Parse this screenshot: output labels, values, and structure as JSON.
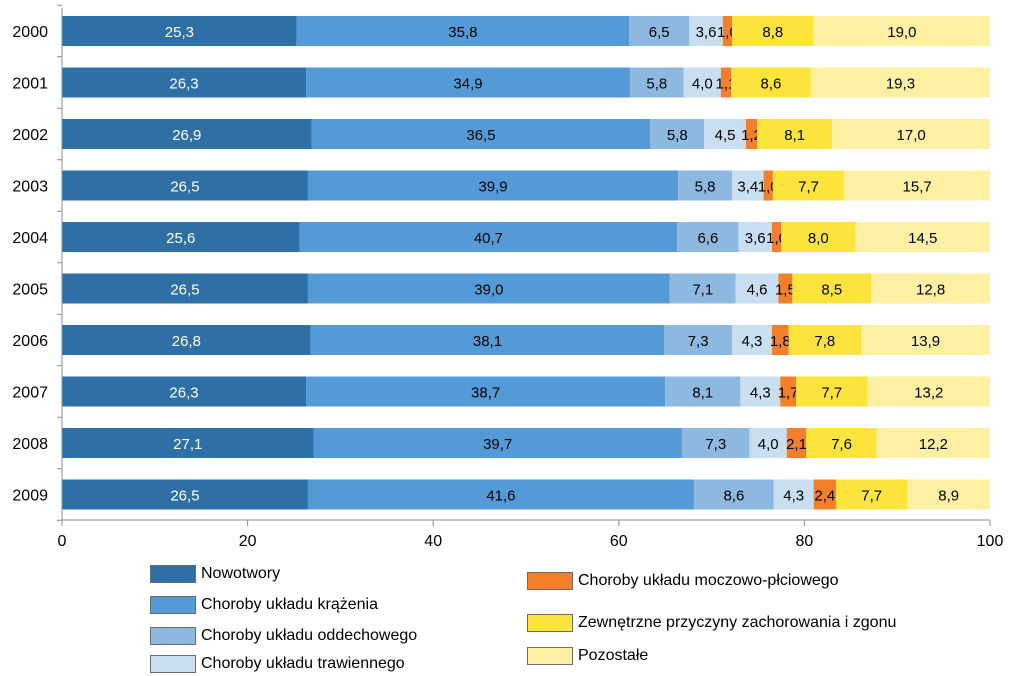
{
  "chart_data": {
    "type": "bar",
    "orientation": "horizontal",
    "stacked": true,
    "categories": [
      "2000",
      "2001",
      "2002",
      "2003",
      "2004",
      "2005",
      "2006",
      "2007",
      "2008",
      "2009"
    ],
    "xlim": [
      0,
      100
    ],
    "xticks": [
      0,
      20,
      40,
      60,
      80,
      100
    ],
    "grid": false,
    "legend_position": "bottom",
    "series": [
      {
        "name": "Nowotwory",
        "color": "#2e6fa5",
        "values": [
          25.3,
          26.3,
          26.9,
          26.5,
          25.6,
          26.5,
          26.8,
          26.3,
          27.1,
          26.5
        ],
        "labels": [
          "25,3",
          "26,3",
          "26,9",
          "26,5",
          "25,6",
          "26,5",
          "26,8",
          "26,3",
          "27,1",
          "26,5"
        ]
      },
      {
        "name": "Choroby układu krążenia",
        "color": "#549ad6",
        "values": [
          35.8,
          34.9,
          36.5,
          39.9,
          40.7,
          39.0,
          38.1,
          38.7,
          39.7,
          41.6
        ],
        "labels": [
          "35,8",
          "34,9",
          "36,5",
          "39,9",
          "40,7",
          "39,0",
          "38,1",
          "38,7",
          "39,7",
          "41,6"
        ]
      },
      {
        "name": "Choroby układu oddechowego",
        "color": "#8db9e1",
        "values": [
          6.5,
          5.8,
          5.8,
          5.8,
          6.6,
          7.1,
          7.3,
          8.1,
          7.3,
          8.6
        ],
        "labels": [
          "6,5",
          "5,8",
          "5,8",
          "5,8",
          "6,6",
          "7,1",
          "7,3",
          "8,1",
          "7,3",
          "8,6"
        ]
      },
      {
        "name": "Choroby układu trawiennego",
        "color": "#c9def1",
        "values": [
          3.6,
          4.0,
          4.5,
          3.4,
          3.6,
          4.6,
          4.3,
          4.3,
          4.0,
          4.3
        ],
        "labels": [
          "3,6",
          "4,0",
          "4,5",
          "3,4",
          "3,6",
          "4,6",
          "4,3",
          "4,3",
          "4,0",
          "4,3"
        ]
      },
      {
        "name": "Choroby układu moczowo-płciowego",
        "color": "#f47f2a",
        "values": [
          1.0,
          1.1,
          1.2,
          1.0,
          1.0,
          1.5,
          1.8,
          1.7,
          2.1,
          2.4
        ],
        "labels": [
          "1,0",
          "1,1",
          "1,2",
          "1,0",
          "1,0",
          "1,5",
          "1,8",
          "1,7",
          "2,1",
          "2,4"
        ]
      },
      {
        "name": "Zewnętrzne przyczyny zachorowania i zgonu",
        "color": "#fce43c",
        "values": [
          8.8,
          8.6,
          8.1,
          7.7,
          8.0,
          8.5,
          7.8,
          7.7,
          7.6,
          7.7
        ],
        "labels": [
          "8,8",
          "8,6",
          "8,1",
          "7,7",
          "8,0",
          "8,5",
          "7,8",
          "7,7",
          "7,6",
          "7,7"
        ]
      },
      {
        "name": "Pozostałe",
        "color": "#fdf0a3",
        "values": [
          19.0,
          19.3,
          17.0,
          15.7,
          14.5,
          12.8,
          13.9,
          13.2,
          12.2,
          8.9
        ],
        "labels": [
          "19,0",
          "19,3",
          "17,0",
          "15,7",
          "14,5",
          "12,8",
          "13,9",
          "13,2",
          "12,2",
          "8,9"
        ]
      }
    ]
  },
  "legend": {
    "items": [
      {
        "label": "Nowotwory",
        "color": "#2e6fa5"
      },
      {
        "label": "Choroby układu krążenia",
        "color": "#549ad6"
      },
      {
        "label": "Choroby układu oddechowego",
        "color": "#8db9e1"
      },
      {
        "label": "Choroby układu trawiennego",
        "color": "#c9def1"
      },
      {
        "label": "Choroby układu moczowo-płciowego",
        "color": "#f47f2a"
      },
      {
        "label": "Zewnętrzne przyczyny zachorowania i zgonu",
        "color": "#fce43c"
      },
      {
        "label": "Pozostałe",
        "color": "#fdf0a3"
      }
    ]
  }
}
